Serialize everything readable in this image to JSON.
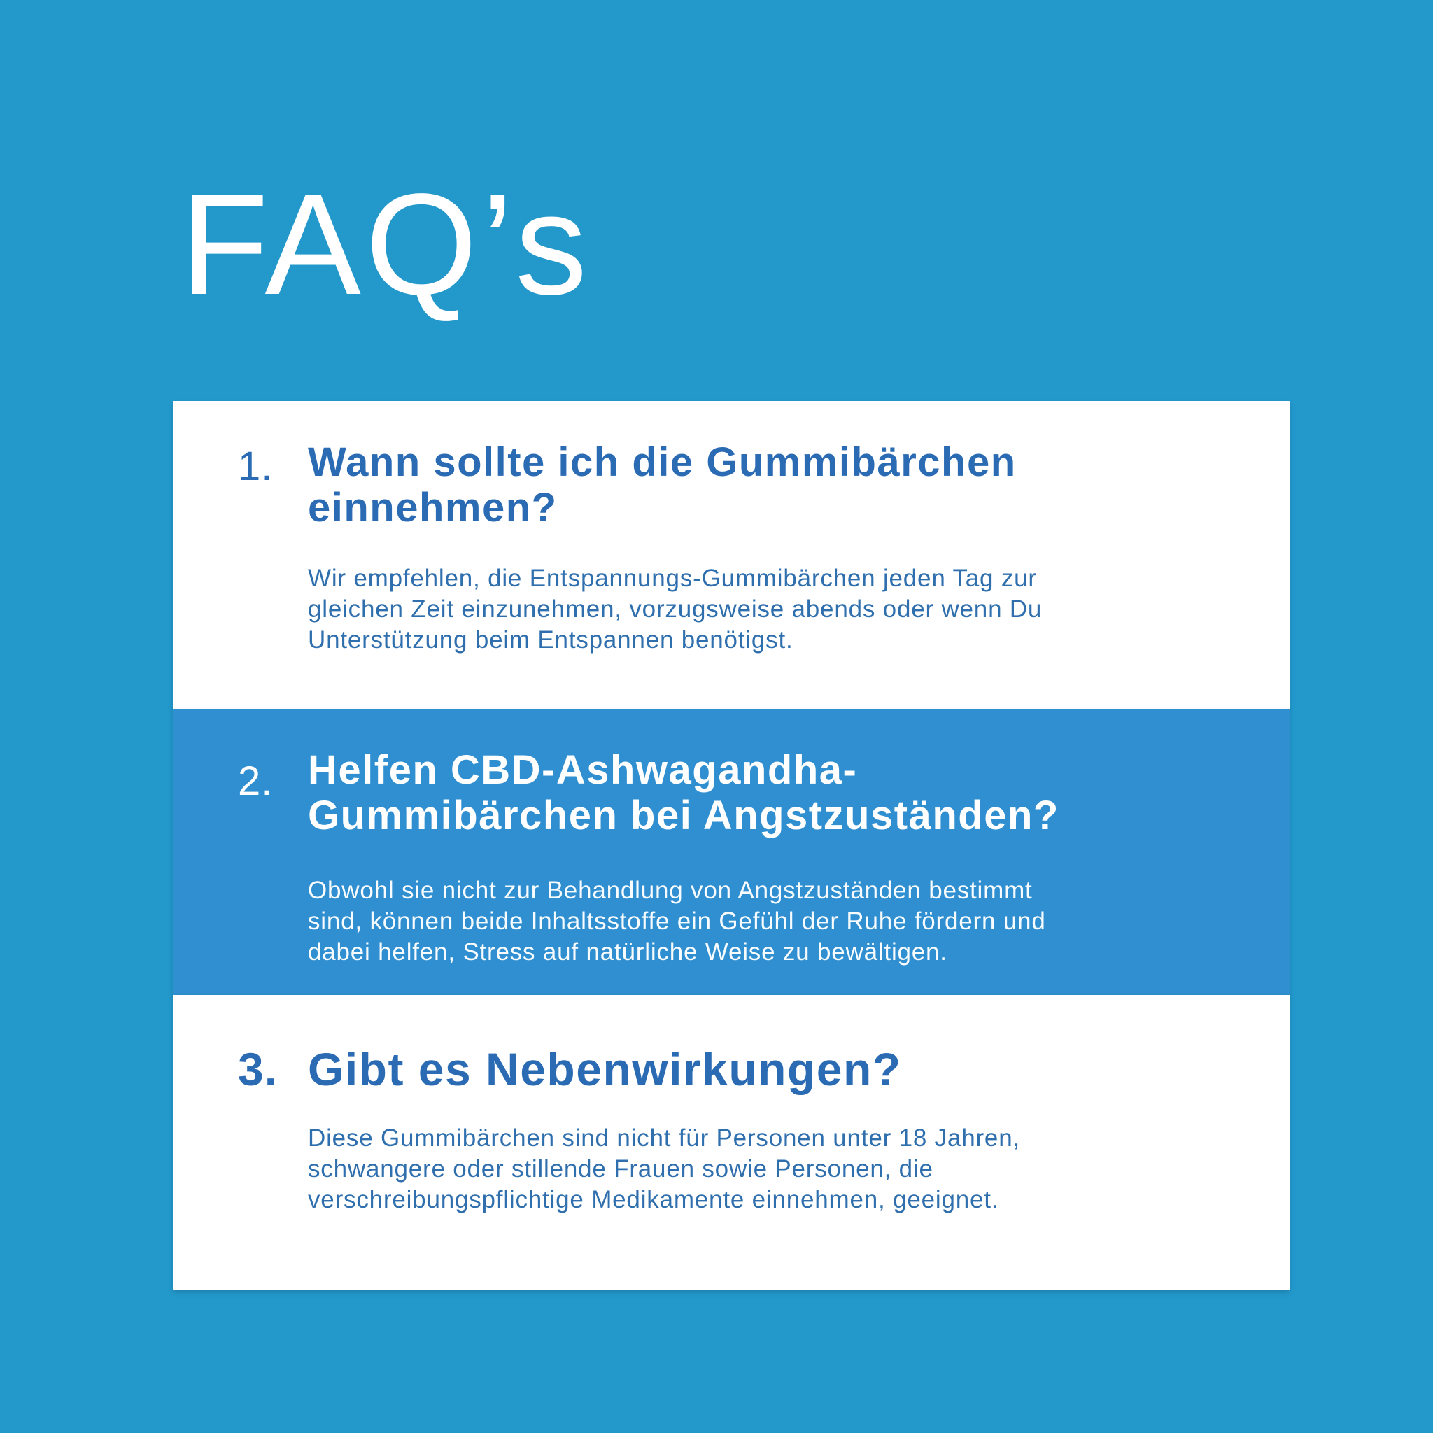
{
  "page": {
    "title": "FAQ’s"
  },
  "colors": {
    "background": "#2399CB",
    "card_blue": "#2F8FD0",
    "card_white": "#FFFFFF",
    "heading_text": "#2A6BB4",
    "body_text": "#2F6FAE",
    "title_text": "#FFFFFF"
  },
  "faq": {
    "items": [
      {
        "number": "1.",
        "question": "Wann sollte ich die Gummibärchen einnehmen?",
        "question_lines": [
          "Wann sollte ich die Gummibärchen",
          "einnehmen?"
        ],
        "answer": "Wir empfehlen, die Entspannungs-Gummibärchen jeden Tag zur gleichen Zeit einzunehmen, vorzugsweise abends oder wenn Du Unterstützung beim Entspannen benötigst.",
        "answer_lines": [
          "Wir empfehlen, die Entspannungs-Gummibärchen jeden Tag zur",
          "gleichen Zeit einzunehmen, vorzugsweise abends oder wenn Du",
          "Unterstützung beim Entspannen benötigst."
        ]
      },
      {
        "number": "2.",
        "question": "Helfen CBD-Ashwagandha-Gummibärchen bei Angstzuständen?",
        "question_lines": [
          "Helfen CBD-Ashwagandha-",
          "Gummibärchen bei Angstzuständen?"
        ],
        "answer": "Obwohl sie nicht zur Behandlung von Angstzuständen bestimmt sind, können beide Inhaltsstoffe ein Gefühl der Ruhe fördern und dabei helfen, Stress auf natürliche Weise zu bewältigen.",
        "answer_lines": [
          "Obwohl sie nicht zur Behandlung von Angstzuständen bestimmt",
          "sind, können beide Inhaltsstoffe ein Gefühl der Ruhe fördern und",
          "dabei helfen, Stress auf natürliche Weise zu bewältigen."
        ]
      },
      {
        "number": "3.",
        "question": "Gibt es Nebenwirkungen?",
        "question_lines": [
          "Gibt es Nebenwirkungen?"
        ],
        "answer": "Diese Gummibärchen sind nicht für Personen unter 18 Jahren, schwangere oder stillende Frauen sowie Personen, die verschreibungspflichtige Medikamente einnehmen, geeignet.",
        "answer_lines": [
          "Diese Gummibärchen sind nicht für Personen unter 18 Jahren,",
          "schwangere oder stillende Frauen sowie Personen, die",
          "verschreibungspflichtige Medikamente einnehmen, geeignet."
        ]
      }
    ]
  }
}
